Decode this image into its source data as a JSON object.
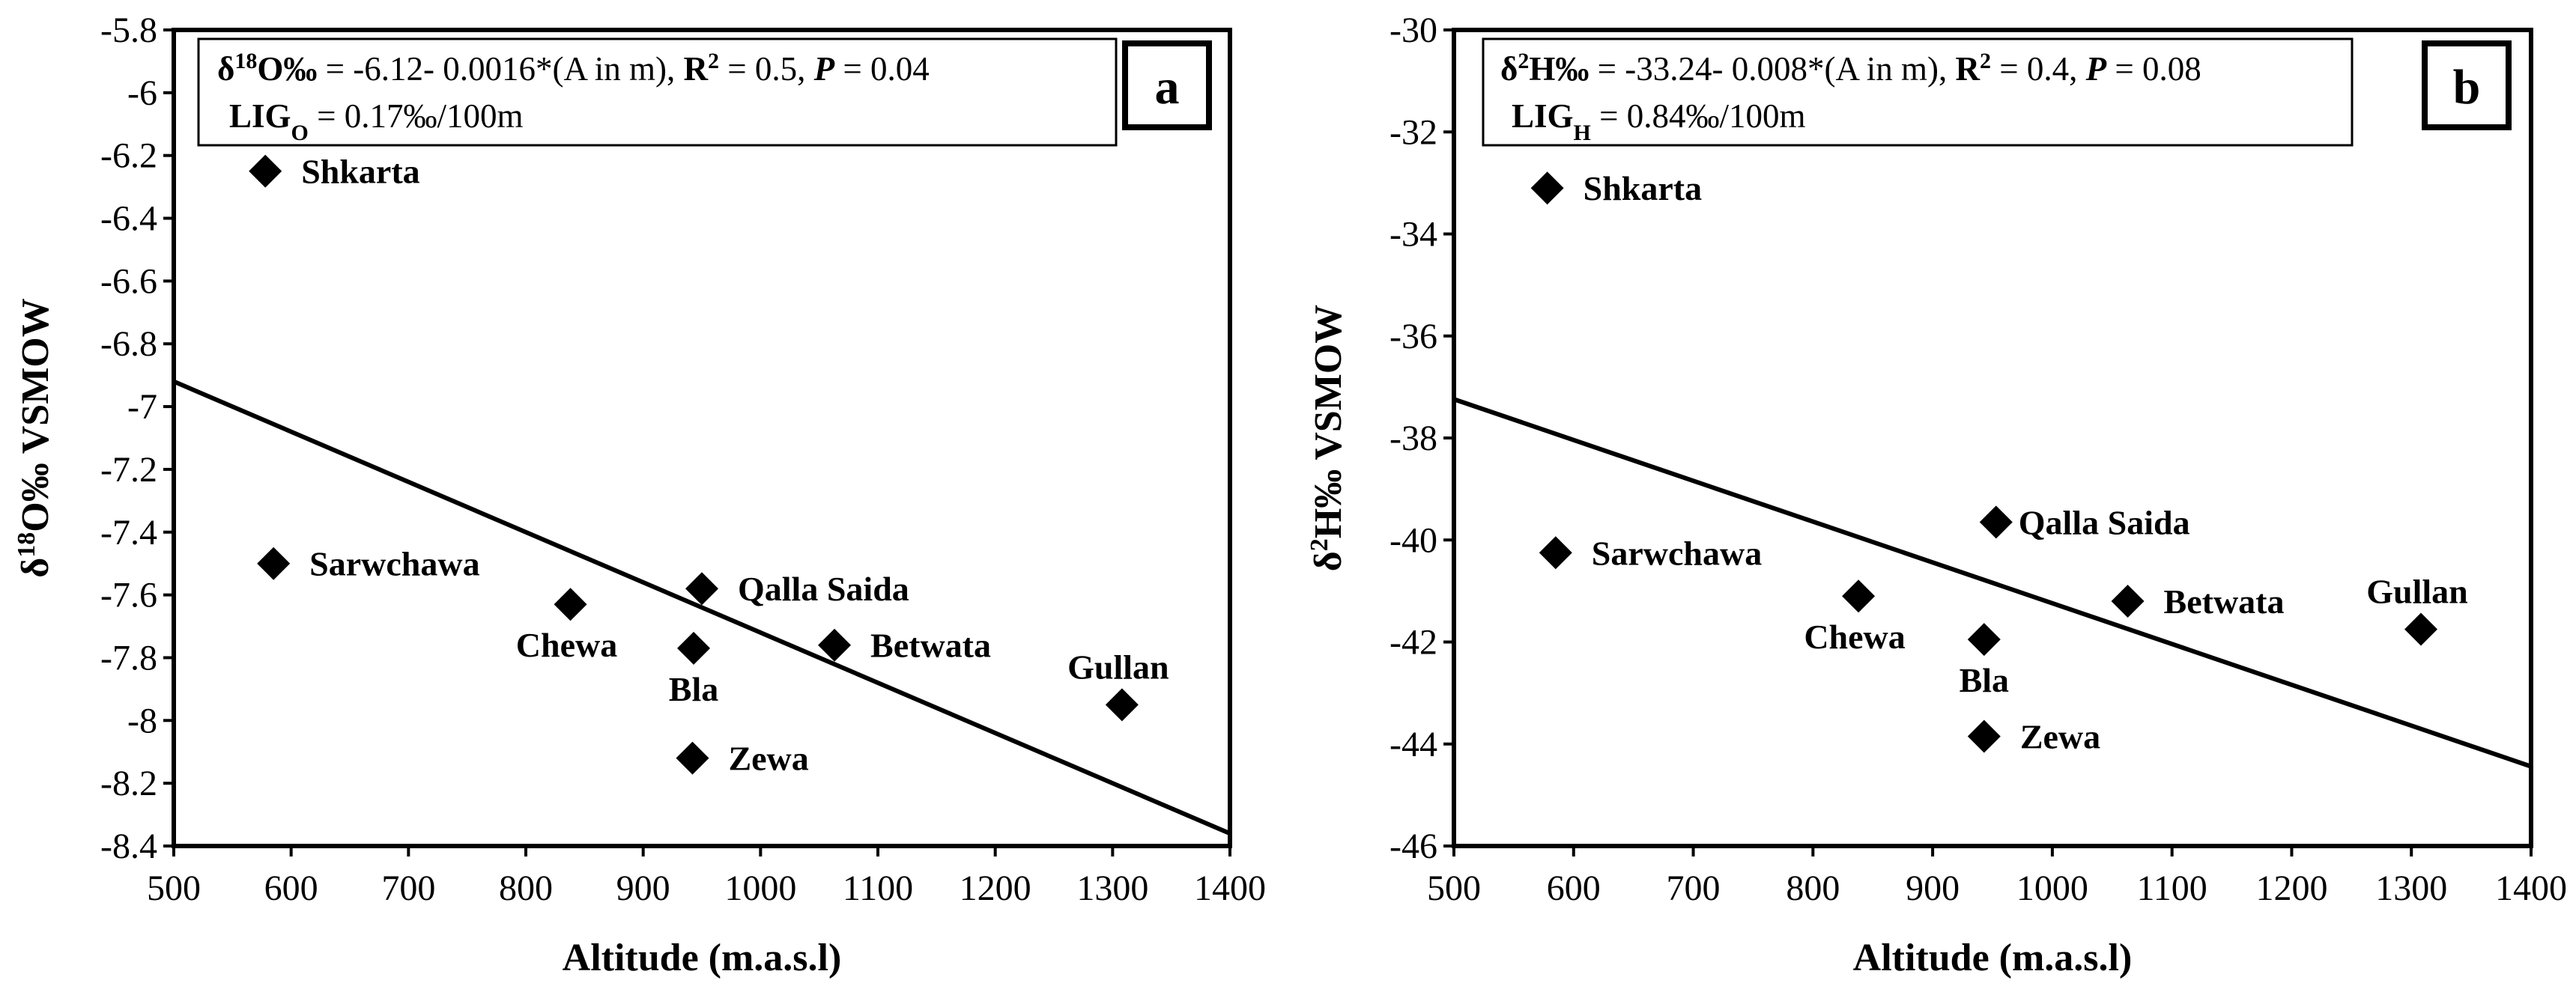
{
  "chart_data": [
    {
      "type": "scatter",
      "panel": "a",
      "xlabel": "Altitude (m.a.s.l)",
      "ylabel": "δ18O‰ VSMOW",
      "ylabel_parts": {
        "symbol": "δ",
        "sup": "18",
        "main": "O‰ VSMOW"
      },
      "xlim": [
        500,
        1400
      ],
      "ylim": [
        -8.4,
        -5.8
      ],
      "xticks": [
        500,
        600,
        700,
        800,
        900,
        1000,
        1100,
        1200,
        1300,
        1400
      ],
      "yticks": [
        -5.8,
        -6,
        -6.2,
        -6.4,
        -6.6,
        -6.8,
        -7,
        -7.2,
        -7.4,
        -7.6,
        -7.8,
        -8,
        -8.2,
        -8.4
      ],
      "ytick_labels": [
        "-5.8",
        "-6",
        "-6.2",
        "-6.4",
        "-6.6",
        "-6.8",
        "-7",
        "-7.2",
        "-7.4",
        "-7.6",
        "-7.8",
        "-8",
        "-8.2",
        "-8.4"
      ],
      "points": [
        {
          "name": "Shkarta",
          "x": 578,
          "y": -6.25,
          "label_pos": "right"
        },
        {
          "name": "Sarwchawa",
          "x": 585,
          "y": -7.5,
          "label_pos": "right"
        },
        {
          "name": "Chewa",
          "x": 838,
          "y": -7.63,
          "label_pos": "below-left"
        },
        {
          "name": "Qalla Saida",
          "x": 950,
          "y": -7.58,
          "label_pos": "right"
        },
        {
          "name": "Bla",
          "x": 943,
          "y": -7.77,
          "label_pos": "below"
        },
        {
          "name": "Zewa",
          "x": 942,
          "y": -8.12,
          "label_pos": "right"
        },
        {
          "name": "Betwata",
          "x": 1063,
          "y": -7.76,
          "label_pos": "right"
        },
        {
          "name": "Gullan",
          "x": 1308,
          "y": -7.95,
          "label_pos": "above"
        }
      ],
      "trendline": {
        "intercept": -6.12,
        "slope": -0.0016,
        "x_range": [
          500,
          1400
        ]
      },
      "equation": {
        "lhs_symbol": "δ",
        "lhs_sup": "18",
        "lhs_main": "O‰",
        "rhs": " = -6.12- 0.0016*(A in m), ",
        "r2_label": "R",
        "r2_sup": "2",
        "r2_value": " = 0.5, ",
        "p_label": "P",
        "p_value": " = 0.04",
        "lig_label": "LIG",
        "lig_sub": "O",
        "lig_value": " = 0.17‰/100m"
      }
    },
    {
      "type": "scatter",
      "panel": "b",
      "xlabel": "Altitude (m.a.s.l)",
      "ylabel": "δ2H‰ VSMOW",
      "ylabel_parts": {
        "symbol": "δ",
        "sup": "2",
        "main": "H‰ VSMOW"
      },
      "xlim": [
        500,
        1400
      ],
      "ylim": [
        -46,
        -30
      ],
      "xticks": [
        500,
        600,
        700,
        800,
        900,
        1000,
        1100,
        1200,
        1300,
        1400
      ],
      "yticks": [
        -30,
        -32,
        -34,
        -36,
        -38,
        -40,
        -42,
        -44,
        -46
      ],
      "ytick_labels": [
        "-30",
        "-32",
        "-34",
        "-36",
        "-38",
        "-40",
        "-42",
        "-44",
        "-46"
      ],
      "points": [
        {
          "name": "Shkarta",
          "x": 578,
          "y": -33.1,
          "label_pos": "right"
        },
        {
          "name": "Sarwchawa",
          "x": 585,
          "y": -40.25,
          "label_pos": "right"
        },
        {
          "name": "Chewa",
          "x": 838,
          "y": -41.1,
          "label_pos": "below-left"
        },
        {
          "name": "Qalla Saida",
          "x": 953,
          "y": -39.65,
          "label_pos": "right-tight"
        },
        {
          "name": "Bla",
          "x": 943,
          "y": -41.95,
          "label_pos": "below"
        },
        {
          "name": "Zewa",
          "x": 943,
          "y": -43.85,
          "label_pos": "right"
        },
        {
          "name": "Betwata",
          "x": 1063,
          "y": -41.2,
          "label_pos": "right"
        },
        {
          "name": "Gullan",
          "x": 1308,
          "y": -41.75,
          "label_pos": "above"
        }
      ],
      "trendline": {
        "intercept": -33.24,
        "slope": -0.008,
        "x_range": [
          500,
          1400
        ]
      },
      "equation": {
        "lhs_symbol": "δ",
        "lhs_sup": "2",
        "lhs_main": "H‰",
        "rhs": " = -33.24- 0.008*(A in m), ",
        "r2_label": "R",
        "r2_sup": "2",
        "r2_value": " = 0.4, ",
        "p_label": "P",
        "p_value": " = 0.08",
        "lig_label": "LIG",
        "lig_sub": "H",
        "lig_value": " = 0.84‰/100m"
      }
    }
  ]
}
